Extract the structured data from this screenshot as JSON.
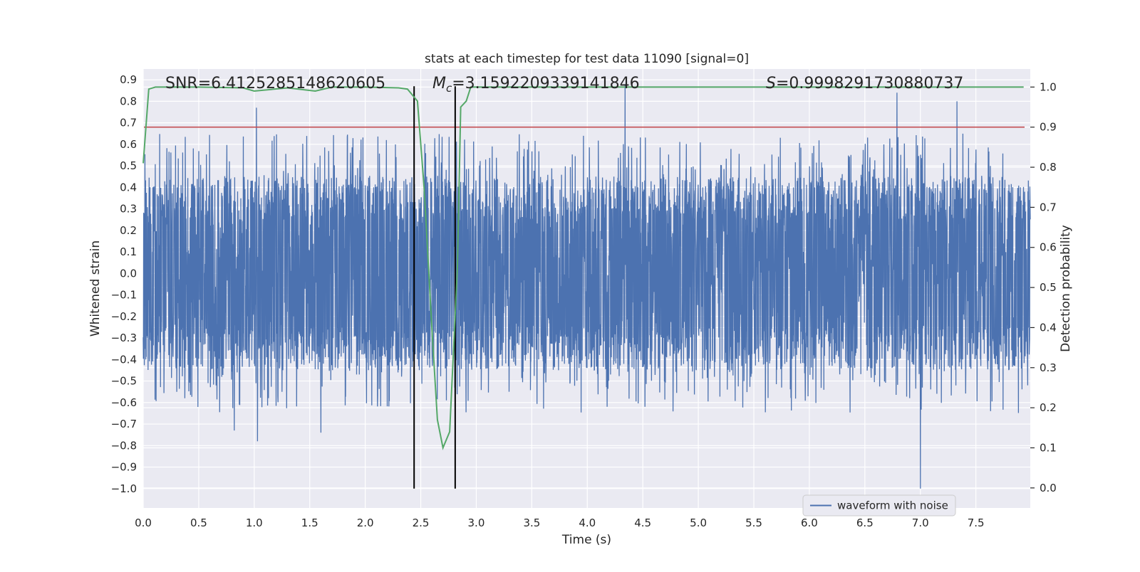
{
  "chart_data": {
    "type": "line",
    "title": "stats at each timestep for test data 11090 [signal=0]",
    "xlabel": "Time (s)",
    "ylabel_left": "Whitened strain",
    "ylabel_right": "Detection probability",
    "xlim": [
      0.0,
      7.99
    ],
    "ylim_left": [
      -1.09,
      0.95
    ],
    "ylim_right": [
      -0.05,
      1.045
    ],
    "x_ticks": [
      0.0,
      0.5,
      1.0,
      1.5,
      2.0,
      2.5,
      3.0,
      3.5,
      4.0,
      4.5,
      5.0,
      5.5,
      6.0,
      6.5,
      7.0,
      7.5
    ],
    "x_tick_labels": [
      "0.0",
      "0.5",
      "1.0",
      "1.5",
      "2.0",
      "2.5",
      "3.0",
      "3.5",
      "4.0",
      "4.5",
      "5.0",
      "5.5",
      "6.0",
      "6.5",
      "7.0",
      "7.5"
    ],
    "y_left_ticks": [
      0.9,
      0.8,
      0.7,
      0.6,
      0.5,
      0.4,
      0.3,
      0.2,
      0.1,
      0.0,
      -0.1,
      -0.2,
      -0.3,
      -0.4,
      -0.5,
      -0.6,
      -0.7,
      -0.8,
      -0.9,
      -1.0
    ],
    "y_left_tick_labels": [
      "0.9",
      "0.8",
      "0.7",
      "0.6",
      "0.5",
      "0.4",
      "0.3",
      "0.2",
      "0.1",
      "0.0",
      "−0.1",
      "−0.2",
      "−0.3",
      "−0.4",
      "−0.5",
      "−0.6",
      "−0.7",
      "−0.8",
      "−0.9",
      "−1.0"
    ],
    "y_right_ticks": [
      1.0,
      0.9,
      0.8,
      0.7,
      0.6,
      0.5,
      0.4,
      0.3,
      0.2,
      0.1,
      0.0
    ],
    "y_right_tick_labels": [
      "1.0",
      "0.9",
      "0.8",
      "0.7",
      "0.6",
      "0.5",
      "0.4",
      "0.3",
      "0.2",
      "0.1",
      "0.0"
    ],
    "grid": true,
    "legend_position": "lower-right",
    "series": [
      {
        "name": "waveform with noise",
        "axis": "left",
        "color": "#4c72b0",
        "kind": "noise",
        "x_range": [
          0.0,
          7.99
        ],
        "core_band": [
          -0.45,
          0.45
        ],
        "typical_extremes": [
          -0.65,
          0.65
        ],
        "notable_peaks": [
          {
            "x": 1.02,
            "y": 0.77
          },
          {
            "x": 4.34,
            "y": 0.88
          },
          {
            "x": 6.79,
            "y": 0.84
          },
          {
            "x": 7.33,
            "y": 0.8
          },
          {
            "x": 7.0,
            "y": -1.0
          },
          {
            "x": 1.03,
            "y": -0.78
          },
          {
            "x": 0.82,
            "y": -0.73
          },
          {
            "x": 1.6,
            "y": -0.74
          }
        ]
      },
      {
        "axis": "right",
        "color": "#55a868",
        "x": [
          0.0,
          0.05,
          0.11,
          0.5,
          0.9,
          1.0,
          1.3,
          1.55,
          1.7,
          2.0,
          2.3,
          2.38,
          2.47,
          2.53,
          2.6,
          2.65,
          2.7,
          2.76,
          2.83,
          2.86,
          2.91,
          2.95,
          3.5,
          7.93
        ],
        "y": [
          0.81,
          0.995,
          1.0,
          1.0,
          0.998,
          0.99,
          0.998,
          0.99,
          1.0,
          1.0,
          0.998,
          0.995,
          0.965,
          0.75,
          0.4,
          0.17,
          0.1,
          0.14,
          0.55,
          0.95,
          0.965,
          1.0,
          1.0,
          1.0
        ]
      },
      {
        "axis": "right",
        "color": "#c44e52",
        "kind": "threshold",
        "y": 0.9
      }
    ],
    "vertical_markers": [
      {
        "x": 2.44,
        "y_from": -1.0,
        "y_to": 0.87,
        "color": "#000000"
      },
      {
        "x": 2.81,
        "y_from": -1.0,
        "y_to": 0.87,
        "color": "#000000"
      }
    ],
    "annotations": [
      {
        "id": "snr",
        "text": "SNR=6.4125285148620605"
      },
      {
        "id": "mc",
        "text_symbol": "M",
        "text_subscript": "c",
        "text_rest": "=3.1592209339141846"
      },
      {
        "id": "s",
        "text_symbol": "S",
        "text_rest": "=0.9998291730880737"
      }
    ],
    "colors": {
      "plot_background": "#eaeaf2",
      "grid": "#ffffff",
      "text": "#262626"
    }
  }
}
